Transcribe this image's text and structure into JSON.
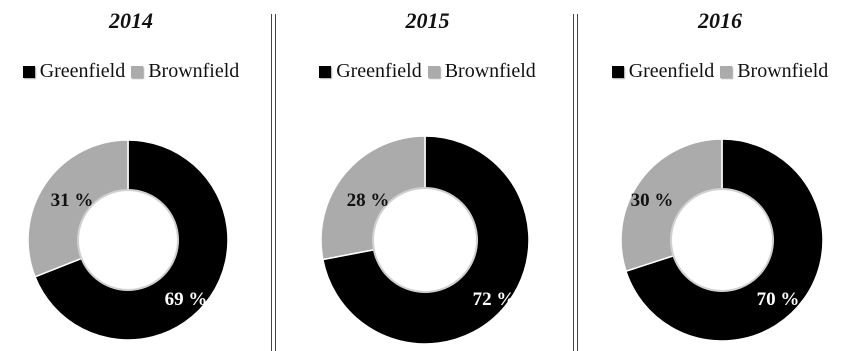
{
  "colors": {
    "greenfield": "#000000",
    "brownfield": "#ababab"
  },
  "chart_data": [
    {
      "type": "pie",
      "title": "2014",
      "legend": "top",
      "categories": [
        "Greenfield",
        "Brownfield"
      ],
      "values": [
        69,
        31
      ],
      "labels": [
        "69 %",
        "31 %"
      ]
    },
    {
      "type": "pie",
      "title": "2015",
      "legend": "top",
      "categories": [
        "Greenfield",
        "Brownfield"
      ],
      "values": [
        72,
        28
      ],
      "labels": [
        "72 %",
        "28 %"
      ]
    },
    {
      "type": "pie",
      "title": "2016",
      "legend": "top",
      "categories": [
        "Greenfield",
        "Brownfield"
      ],
      "values": [
        70,
        30
      ],
      "labels": [
        "70 %",
        "30 %"
      ]
    }
  ]
}
